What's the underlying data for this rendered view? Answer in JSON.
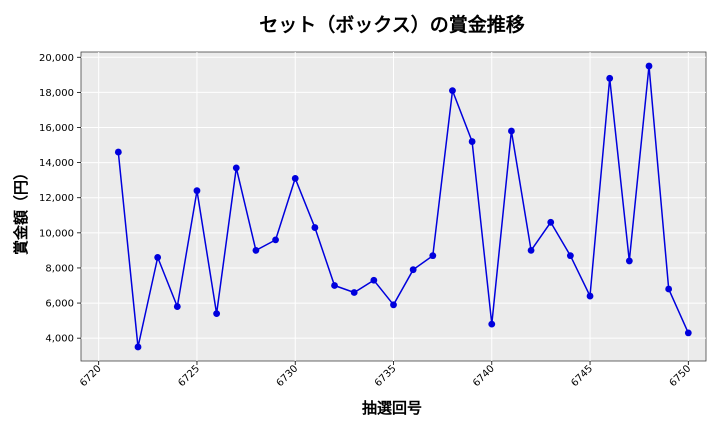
{
  "chart_data": {
    "type": "line",
    "title": "セット（ボックス）の賞金推移",
    "xlabel": "抽選回号",
    "ylabel": "賞金額（円）",
    "xlim": [
      6719.1,
      6750.9
    ],
    "ylim": [
      2700,
      20300
    ],
    "x_ticks": [
      6720,
      6725,
      6730,
      6735,
      6740,
      6745,
      6750
    ],
    "x_tick_labels": [
      "6720",
      "6725",
      "6730",
      "6735",
      "6740",
      "6745",
      "6750"
    ],
    "y_ticks": [
      4000,
      6000,
      8000,
      10000,
      12000,
      14000,
      16000,
      18000,
      20000
    ],
    "y_tick_labels": [
      "4,000",
      "6,000",
      "8,000",
      "10,000",
      "12,000",
      "14,000",
      "16,000",
      "18,000",
      "20,000"
    ],
    "grid": true,
    "series": [
      {
        "color": "#0000dd",
        "x": [
          6721,
          6722,
          6723,
          6724,
          6725,
          6726,
          6727,
          6728,
          6729,
          6730,
          6731,
          6732,
          6733,
          6734,
          6735,
          6736,
          6737,
          6738,
          6739,
          6740,
          6741,
          6742,
          6743,
          6744,
          6745,
          6746,
          6747,
          6748,
          6749,
          6750
        ],
        "y": [
          14600,
          3500,
          8600,
          5800,
          12400,
          5400,
          13700,
          9000,
          9600,
          13100,
          10300,
          7000,
          6600,
          7300,
          5900,
          7900,
          8700,
          18100,
          15200,
          4800,
          15800,
          9000,
          10600,
          8700,
          6400,
          18800,
          8400,
          19500,
          6800,
          4300
        ]
      }
    ]
  },
  "colors": {
    "plot_bg": "#ebebeb",
    "grid": "#ffffff",
    "line": "#0000dd"
  }
}
